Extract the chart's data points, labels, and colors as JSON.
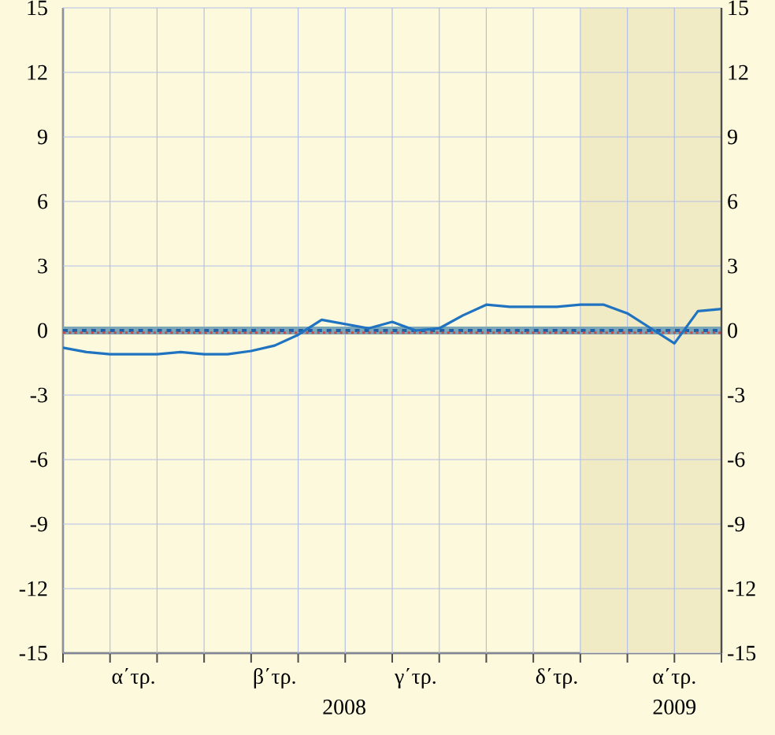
{
  "chart_data": {
    "type": "line",
    "categories": [
      null,
      null,
      null,
      "α΄τρ.",
      null,
      null,
      null,
      null,
      null,
      "β΄τρ.",
      null,
      null,
      null,
      null,
      null,
      "γ΄τρ.",
      null,
      null,
      null,
      null,
      null,
      "δ΄τρ.",
      null,
      null,
      null,
      null,
      "α΄τρ.",
      null,
      null
    ],
    "ylim": [
      -15,
      15
    ],
    "yticks": [
      -15,
      -12,
      -9,
      -6,
      -3,
      0,
      3,
      6,
      9,
      12,
      15
    ],
    "y2lim": [
      -15,
      15
    ],
    "y2ticks": [
      -15,
      -12,
      -9,
      -6,
      -3,
      0,
      3,
      6,
      9,
      12,
      15
    ],
    "grid": true,
    "annotations": [
      "2008",
      "2009"
    ],
    "series": [
      {
        "color": "#7aa6b8",
        "line_style": "solid",
        "values": [
          0,
          0,
          0,
          0,
          0,
          0,
          0,
          0,
          0,
          0,
          0,
          0,
          0,
          0,
          0,
          0,
          0,
          0,
          0,
          0,
          0,
          0,
          0,
          0,
          0,
          0,
          0,
          0,
          0
        ]
      },
      {
        "color": "#1f5fa8",
        "line_style": "dashed",
        "values": [
          0,
          0,
          0,
          0,
          0,
          0,
          0,
          0,
          0,
          0,
          0,
          0,
          0,
          0,
          0,
          0,
          0,
          0,
          0,
          0,
          0,
          0,
          0,
          0,
          0,
          0,
          0,
          0,
          0
        ]
      },
      {
        "color": "#c0504d",
        "line_style": "dotted",
        "values": [
          -0.1,
          -0.1,
          -0.1,
          -0.1,
          -0.1,
          -0.1,
          -0.1,
          -0.1,
          -0.1,
          -0.1,
          -0.1,
          -0.1,
          -0.1,
          -0.1,
          -0.1,
          -0.1,
          -0.1,
          -0.1,
          -0.1,
          -0.1,
          -0.1,
          -0.1,
          -0.1,
          -0.1,
          -0.1,
          -0.1,
          -0.1,
          -0.1,
          -0.1
        ]
      },
      {
        "color": "#1f73c0",
        "line_style": "solid",
        "values": [
          -0.8,
          -1.0,
          -1.1,
          -1.1,
          -1.1,
          -1.0,
          -1.1,
          -1.1,
          -0.95,
          -0.7,
          -0.2,
          0.5,
          0.3,
          0.1,
          0.4,
          0.0,
          0.1,
          0.7,
          1.2,
          1.1,
          1.1,
          1.1,
          1.2,
          1.2,
          0.8,
          0.1,
          -0.6,
          0.9,
          1.0
        ]
      }
    ]
  }
}
